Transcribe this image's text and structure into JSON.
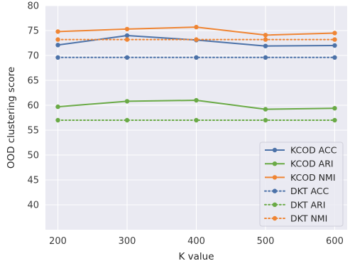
{
  "chart_data": {
    "type": "line",
    "xlabel": "K value",
    "ylabel": "OOD clustering score",
    "x": [
      200,
      300,
      400,
      500,
      600
    ],
    "xlim": [
      182,
      618
    ],
    "ylim": [
      35,
      80
    ],
    "xticks": [
      200,
      300,
      400,
      500,
      600
    ],
    "yticks": [
      40,
      45,
      50,
      55,
      60,
      65,
      70,
      75,
      80
    ],
    "grid": true,
    "background": "#eaeaf2",
    "legend_position": "lower-right",
    "series": [
      {
        "name": "KCOD ACC",
        "values": [
          72.1,
          74.0,
          73.1,
          71.9,
          72.0
        ],
        "color": "#4c72a8",
        "style": "solid"
      },
      {
        "name": "KCOD ARI",
        "values": [
          59.7,
          60.8,
          61.0,
          59.2,
          59.4
        ],
        "color": "#6aaa46",
        "style": "solid"
      },
      {
        "name": "KCOD NMI",
        "values": [
          74.8,
          75.3,
          75.7,
          74.1,
          74.5
        ],
        "color": "#ef8534",
        "style": "solid"
      },
      {
        "name": "DKT ACC",
        "values": [
          69.6,
          69.6,
          69.6,
          69.6,
          69.6
        ],
        "color": "#4c72a8",
        "style": "dotted"
      },
      {
        "name": "DKT ARI",
        "values": [
          57.0,
          57.0,
          57.0,
          57.0,
          57.0
        ],
        "color": "#6aaa46",
        "style": "dotted"
      },
      {
        "name": "DKT NMI",
        "values": [
          73.2,
          73.2,
          73.2,
          73.2,
          73.2
        ],
        "color": "#ef8534",
        "style": "dotted"
      }
    ]
  }
}
